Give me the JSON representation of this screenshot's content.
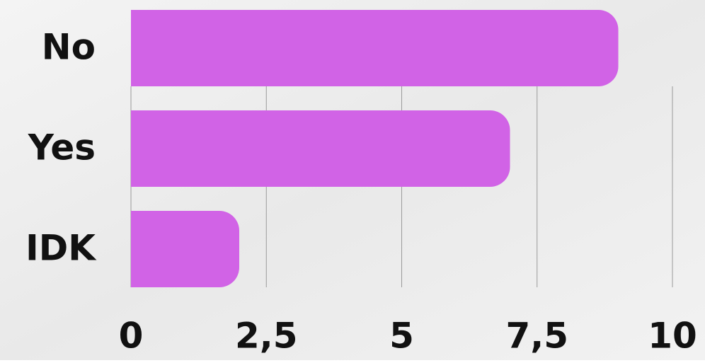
{
  "chart_data": {
    "type": "barh",
    "categories": [
      "No",
      "Yes",
      "IDK"
    ],
    "values": [
      9,
      7,
      2
    ],
    "color": "#d163e6",
    "xlim": [
      0,
      10
    ],
    "xticks": [
      0,
      {
        "value": 2.5,
        "label": "2,5"
      },
      5,
      {
        "value": 7.5,
        "label": "7,5"
      },
      10
    ],
    "grid": true
  }
}
